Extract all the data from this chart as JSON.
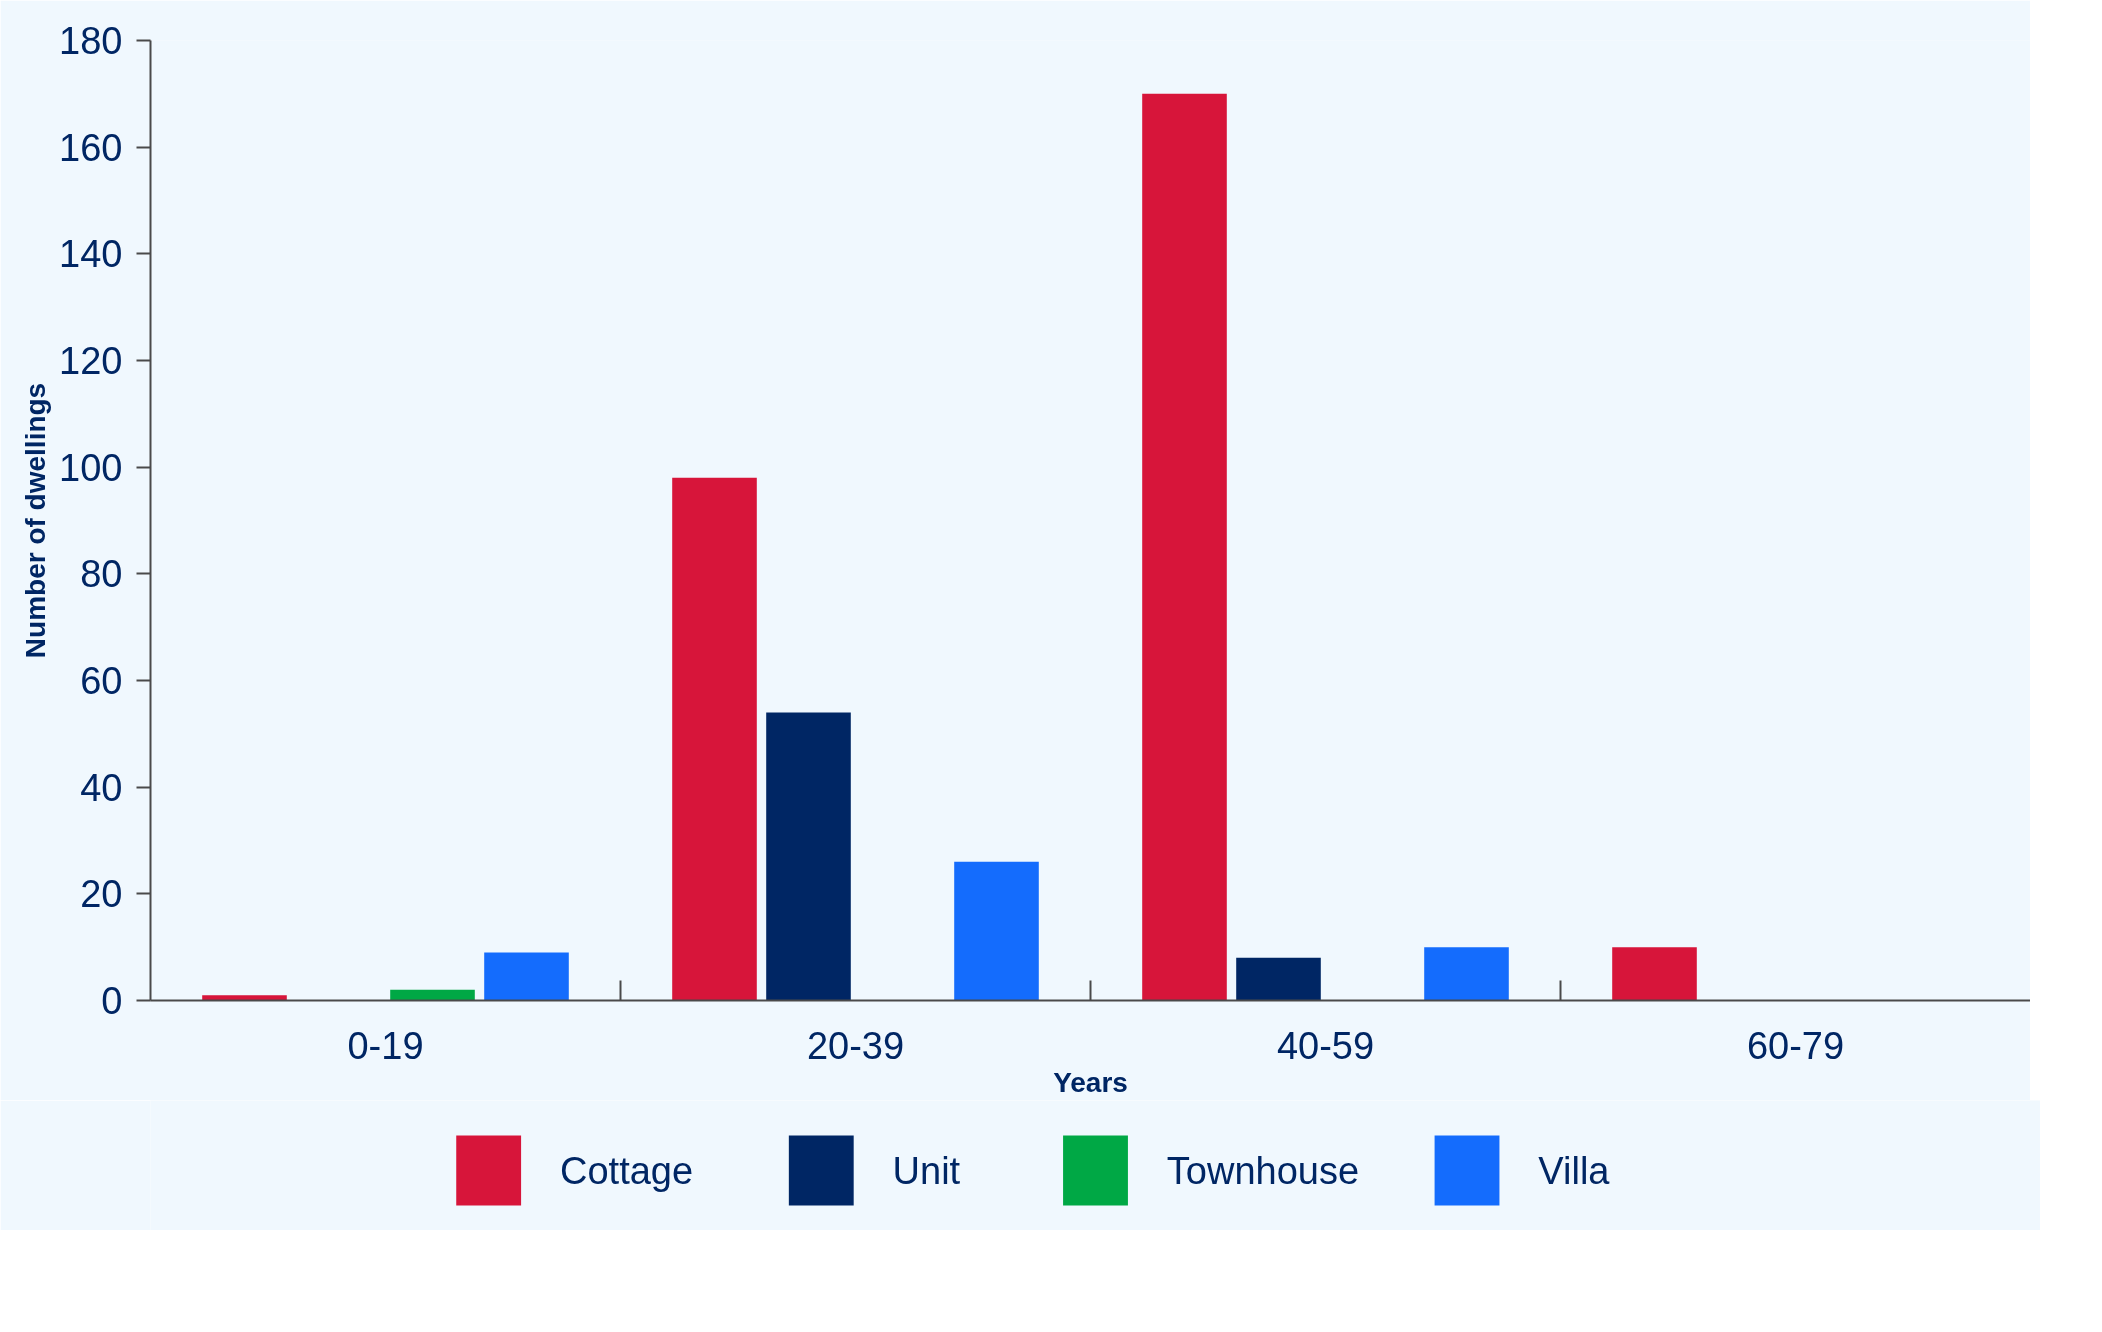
{
  "chart_data": {
    "type": "bar",
    "xlabel": "Years",
    "ylabel": "Number of dwellings",
    "categories": [
      "0-19",
      "20-39",
      "40-59",
      "60-79"
    ],
    "series": [
      {
        "name": "Cottage",
        "color": "#d7153a",
        "values": [
          1,
          98,
          170,
          10
        ]
      },
      {
        "name": "Unit",
        "color": "#002664",
        "values": [
          0,
          54,
          8,
          0
        ]
      },
      {
        "name": "Townhouse",
        "color": "#00a845",
        "values": [
          2,
          0,
          0,
          0
        ]
      },
      {
        "name": "Villa",
        "color": "#146cfd",
        "values": [
          9,
          26,
          10,
          0
        ]
      }
    ],
    "ylim": [
      0,
      180
    ],
    "yticks": [
      0,
      20,
      40,
      60,
      80,
      100,
      120,
      140,
      160,
      180
    ],
    "grid": false,
    "legend": "bottom"
  }
}
